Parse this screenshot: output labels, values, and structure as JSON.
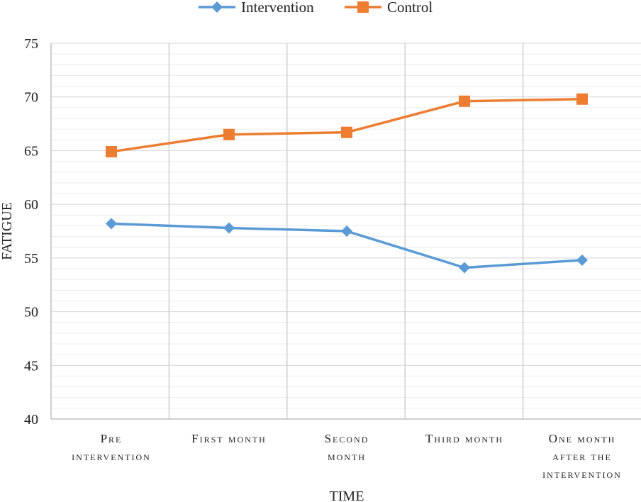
{
  "chart_data": {
    "type": "line",
    "xlabel": "TIME",
    "ylabel": "FATIGUE",
    "ylim": [
      40,
      75
    ],
    "yticks": [
      40,
      45,
      50,
      55,
      60,
      65,
      70,
      75
    ],
    "categories": [
      [
        "Pre",
        "intervention"
      ],
      [
        "First month"
      ],
      [
        "Second",
        "month"
      ],
      [
        "Third month"
      ],
      [
        "One month",
        "after the",
        "intervention"
      ]
    ],
    "series": [
      {
        "name": "Intervention",
        "color": "#5b9bd5",
        "marker": "diamond",
        "values": [
          58.2,
          57.8,
          57.5,
          54.1,
          54.8
        ]
      },
      {
        "name": "Control",
        "color": "#ed7d31",
        "marker": "square",
        "values": [
          64.9,
          66.5,
          66.7,
          69.6,
          69.8
        ]
      }
    ],
    "grid": {
      "horizontal_minor": true,
      "vertical_category_separators": true
    },
    "legend_position": "top-center"
  }
}
